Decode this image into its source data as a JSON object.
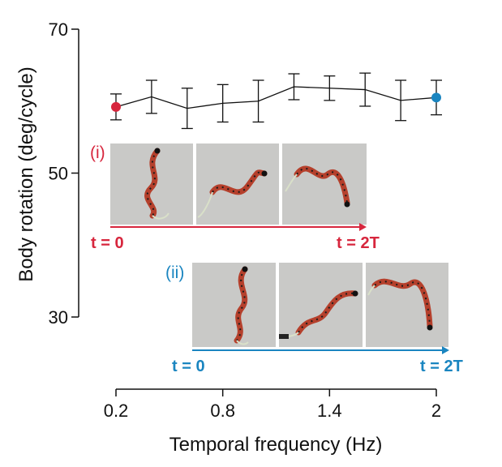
{
  "colors": {
    "inset_i": "#d7263d",
    "inset_ii": "#1a85c0",
    "line": "#111111",
    "photo_bg": "#c9c9c7",
    "snake_body": "#b5402c"
  },
  "chart_data": {
    "type": "line",
    "xlabel": "Temporal frequency (Hz)",
    "ylabel": "Body rotation (deg/cycle)",
    "xlim": [
      0.2,
      2.0
    ],
    "ylim": [
      30,
      70
    ],
    "xticks": [
      0.2,
      0.8,
      1.4,
      2
    ],
    "xtick_labels": [
      "0.2",
      "0.8",
      "1.4",
      "2"
    ],
    "yticks": [
      30,
      50,
      70
    ],
    "ytick_labels": [
      "30",
      "50",
      "70"
    ],
    "grid": false,
    "series": [
      {
        "x": [
          0.2,
          0.4,
          0.6,
          0.8,
          1.0,
          1.2,
          1.4,
          1.6,
          1.8,
          2.0
        ],
        "y": [
          59.2,
          60.6,
          59.0,
          59.7,
          60.0,
          62.0,
          61.8,
          61.6,
          60.1,
          60.5
        ],
        "err": [
          1.8,
          2.3,
          2.8,
          2.6,
          2.9,
          1.8,
          1.7,
          2.3,
          2.8,
          2.4
        ],
        "highlight": [
          {
            "index": 0,
            "color": "#d7263d"
          },
          {
            "index": 9,
            "color": "#1a85c0"
          }
        ]
      }
    ],
    "insets": [
      {
        "tag": "(i)",
        "start_label": "t = 0",
        "end_label": "t = 2T",
        "color": "#d7263d"
      },
      {
        "tag": "(ii)",
        "start_label": "t = 0",
        "end_label": "t = 2T",
        "color": "#1a85c0"
      }
    ]
  }
}
